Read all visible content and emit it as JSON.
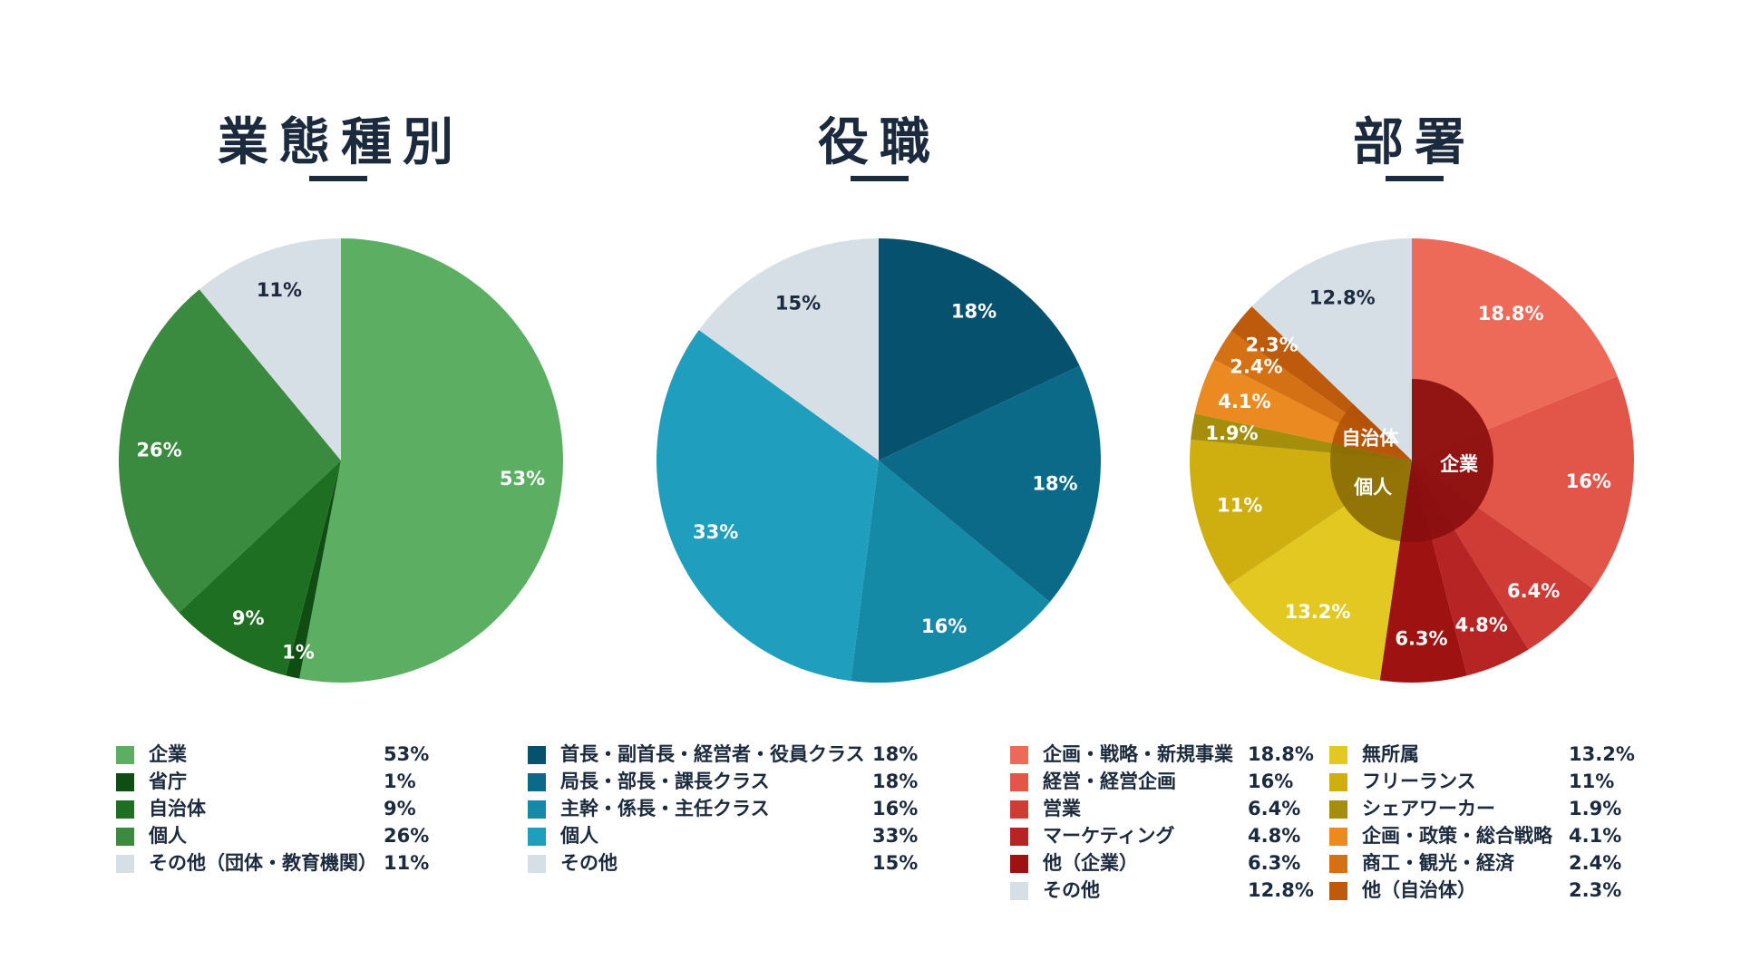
{
  "charts": [
    {
      "title": "業態種別",
      "chart_data": {
        "type": "pie",
        "categories": [
          "企業",
          "省庁",
          "自治体",
          "個人",
          "その他（団体・教育機関）"
        ],
        "values": [
          53,
          1,
          9,
          26,
          11
        ],
        "labels": [
          "53%",
          "1%",
          "9%",
          "26%",
          "11%"
        ],
        "colors": [
          "#5cae63",
          "#0f4d12",
          "#1e6f22",
          "#3a8a3f",
          "#d6dfe6"
        ]
      }
    },
    {
      "title": "役職",
      "chart_data": {
        "type": "pie",
        "categories": [
          "首長・副首長・経営者・役員クラス",
          "局長・部長・課長クラス",
          "主幹・係長・主任クラス",
          "個人",
          "その他"
        ],
        "values": [
          18,
          18,
          16,
          33,
          15
        ],
        "labels": [
          "18%",
          "18%",
          "16%",
          "33%",
          "15%"
        ],
        "colors": [
          "#06516e",
          "#0b6a87",
          "#148aa7",
          "#1f9ebd",
          "#d6dfe6"
        ]
      }
    },
    {
      "title": "部署",
      "chart_data": {
        "type": "pie",
        "categories": [
          "企画・戦略・新規事業",
          "経営・経営企画",
          "営業",
          "マーケティング",
          "他（企業）",
          "無所属",
          "フリーランス",
          "シェアワーカー",
          "企画・政策・総合戦略",
          "商工・観光・経済",
          "他（自治体）",
          "その他"
        ],
        "values": [
          18.8,
          16,
          6.4,
          4.8,
          6.3,
          13.2,
          11,
          1.9,
          4.1,
          2.4,
          2.3,
          12.8
        ],
        "labels": [
          "18.8%",
          "16%",
          "6.4%",
          "4.8%",
          "6.3%",
          "13.2%",
          "11%",
          "1.9%",
          "4.1%",
          "2.4%",
          "2.3%",
          "12.8%"
        ],
        "colors": [
          "#ee6a58",
          "#e2564a",
          "#cf3c35",
          "#b72424",
          "#9e1212",
          "#e3c821",
          "#cfae10",
          "#a58e0c",
          "#ec8a22",
          "#d47114",
          "#bd5a0c",
          "#d6dfe6"
        ],
        "inner_groups": [
          {
            "label": "企業",
            "value": 52.3,
            "color": "#8a0e0e"
          },
          {
            "label": "個人",
            "value": 26.1,
            "color": "#8c6c05"
          },
          {
            "label": "自治体",
            "value": 8.8,
            "color": "#b35208"
          },
          {
            "label": "",
            "value": 12.8,
            "color": "#d6dfe6"
          }
        ]
      }
    }
  ]
}
